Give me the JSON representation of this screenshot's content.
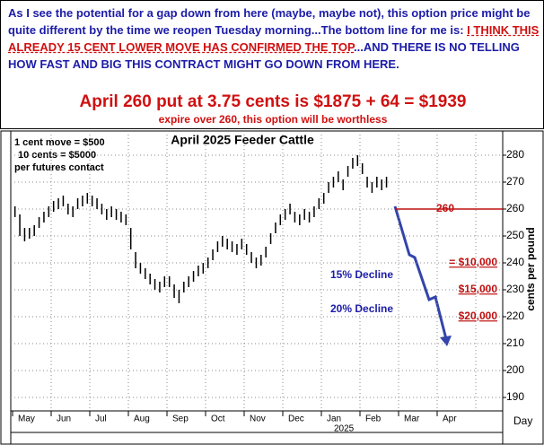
{
  "header": {
    "paragraph": [
      "As I see the potential for a gap down from here (maybe, maybe not), this option price might be quite different by the time we reopen Tuesday morning...The bottom line for me is: ",
      "I THINK THIS ALREADY 15 CENT LOWER MOVE HAS CONFIRMED THE TOP",
      "...AND THERE IS NO TELLING HOW FAST AND BIG THIS CONTRACT MIGHT GO DOWN FROM HERE."
    ],
    "headline": "April 260 put at 3.75 cents is $1875 + 64 = $1939",
    "subline": "expire over 260, this option will be worthless"
  },
  "chart_data": {
    "type": "ohlc",
    "title": "April 2025 Feeder Cattle",
    "categories": [
      "May",
      "Jun",
      "Jul",
      "Aug",
      "Sep",
      "Oct",
      "Nov",
      "Dec",
      "Jan",
      "Feb",
      "Mar",
      "Apr"
    ],
    "year_label": "2025",
    "x_label": "Day",
    "y_label": "cents per pound",
    "high": [
      [
        261,
        258,
        253,
        253,
        254,
        257,
        259,
        261
      ],
      [
        263,
        264,
        265,
        262,
        261,
        264,
        265,
        266
      ],
      [
        265,
        264,
        262,
        260,
        261,
        260,
        259,
        258
      ],
      [
        253,
        244,
        240,
        238,
        236,
        234,
        233,
        235
      ],
      [
        235,
        232,
        230,
        233,
        235,
        237,
        239,
        240
      ],
      [
        242,
        245,
        248,
        250,
        249,
        248,
        247,
        249
      ],
      [
        247,
        244,
        242,
        243,
        246,
        251,
        255,
        258
      ],
      [
        260,
        262,
        259,
        258,
        260,
        259,
        261,
        264
      ],
      [
        266,
        270,
        272,
        274,
        271,
        276,
        279,
        280
      ],
      [
        277,
        272,
        270,
        272,
        271,
        272
      ],
      [],
      []
    ],
    "low": [
      [
        257,
        250,
        248,
        249,
        250,
        253,
        255,
        257
      ],
      [
        259,
        260,
        261,
        258,
        257,
        260,
        261,
        262
      ],
      [
        261,
        260,
        258,
        256,
        257,
        256,
        255,
        254
      ],
      [
        245,
        238,
        236,
        234,
        232,
        230,
        229,
        231
      ],
      [
        231,
        227,
        225,
        229,
        231,
        233,
        235,
        236
      ],
      [
        238,
        241,
        244,
        246,
        245,
        244,
        243,
        245
      ],
      [
        243,
        240,
        238,
        239,
        242,
        247,
        251,
        254
      ],
      [
        256,
        258,
        255,
        254,
        256,
        255,
        257,
        260
      ],
      [
        262,
        266,
        268,
        270,
        267,
        272,
        275,
        276
      ],
      [
        273,
        268,
        266,
        268,
        267,
        268
      ],
      [],
      []
    ],
    "ylim": [
      185,
      289
    ],
    "yticks": [
      190,
      200,
      210,
      220,
      230,
      240,
      250,
      260,
      270,
      280
    ],
    "grid": true,
    "color": "#000000",
    "reference_line": {
      "value": 260,
      "label": "260",
      "color": "#c01010"
    },
    "price_targets": [
      {
        "value": 240,
        "label": "= $10,000"
      },
      {
        "value": 230,
        "label": "$15,000"
      },
      {
        "value": 220,
        "label": "$20,000"
      }
    ],
    "scale_note": [
      "1 cent move = $500",
      "10 cents = $5000",
      "per futures contact"
    ],
    "decline_notes": [
      "15% Decline",
      "20% Decline"
    ]
  }
}
